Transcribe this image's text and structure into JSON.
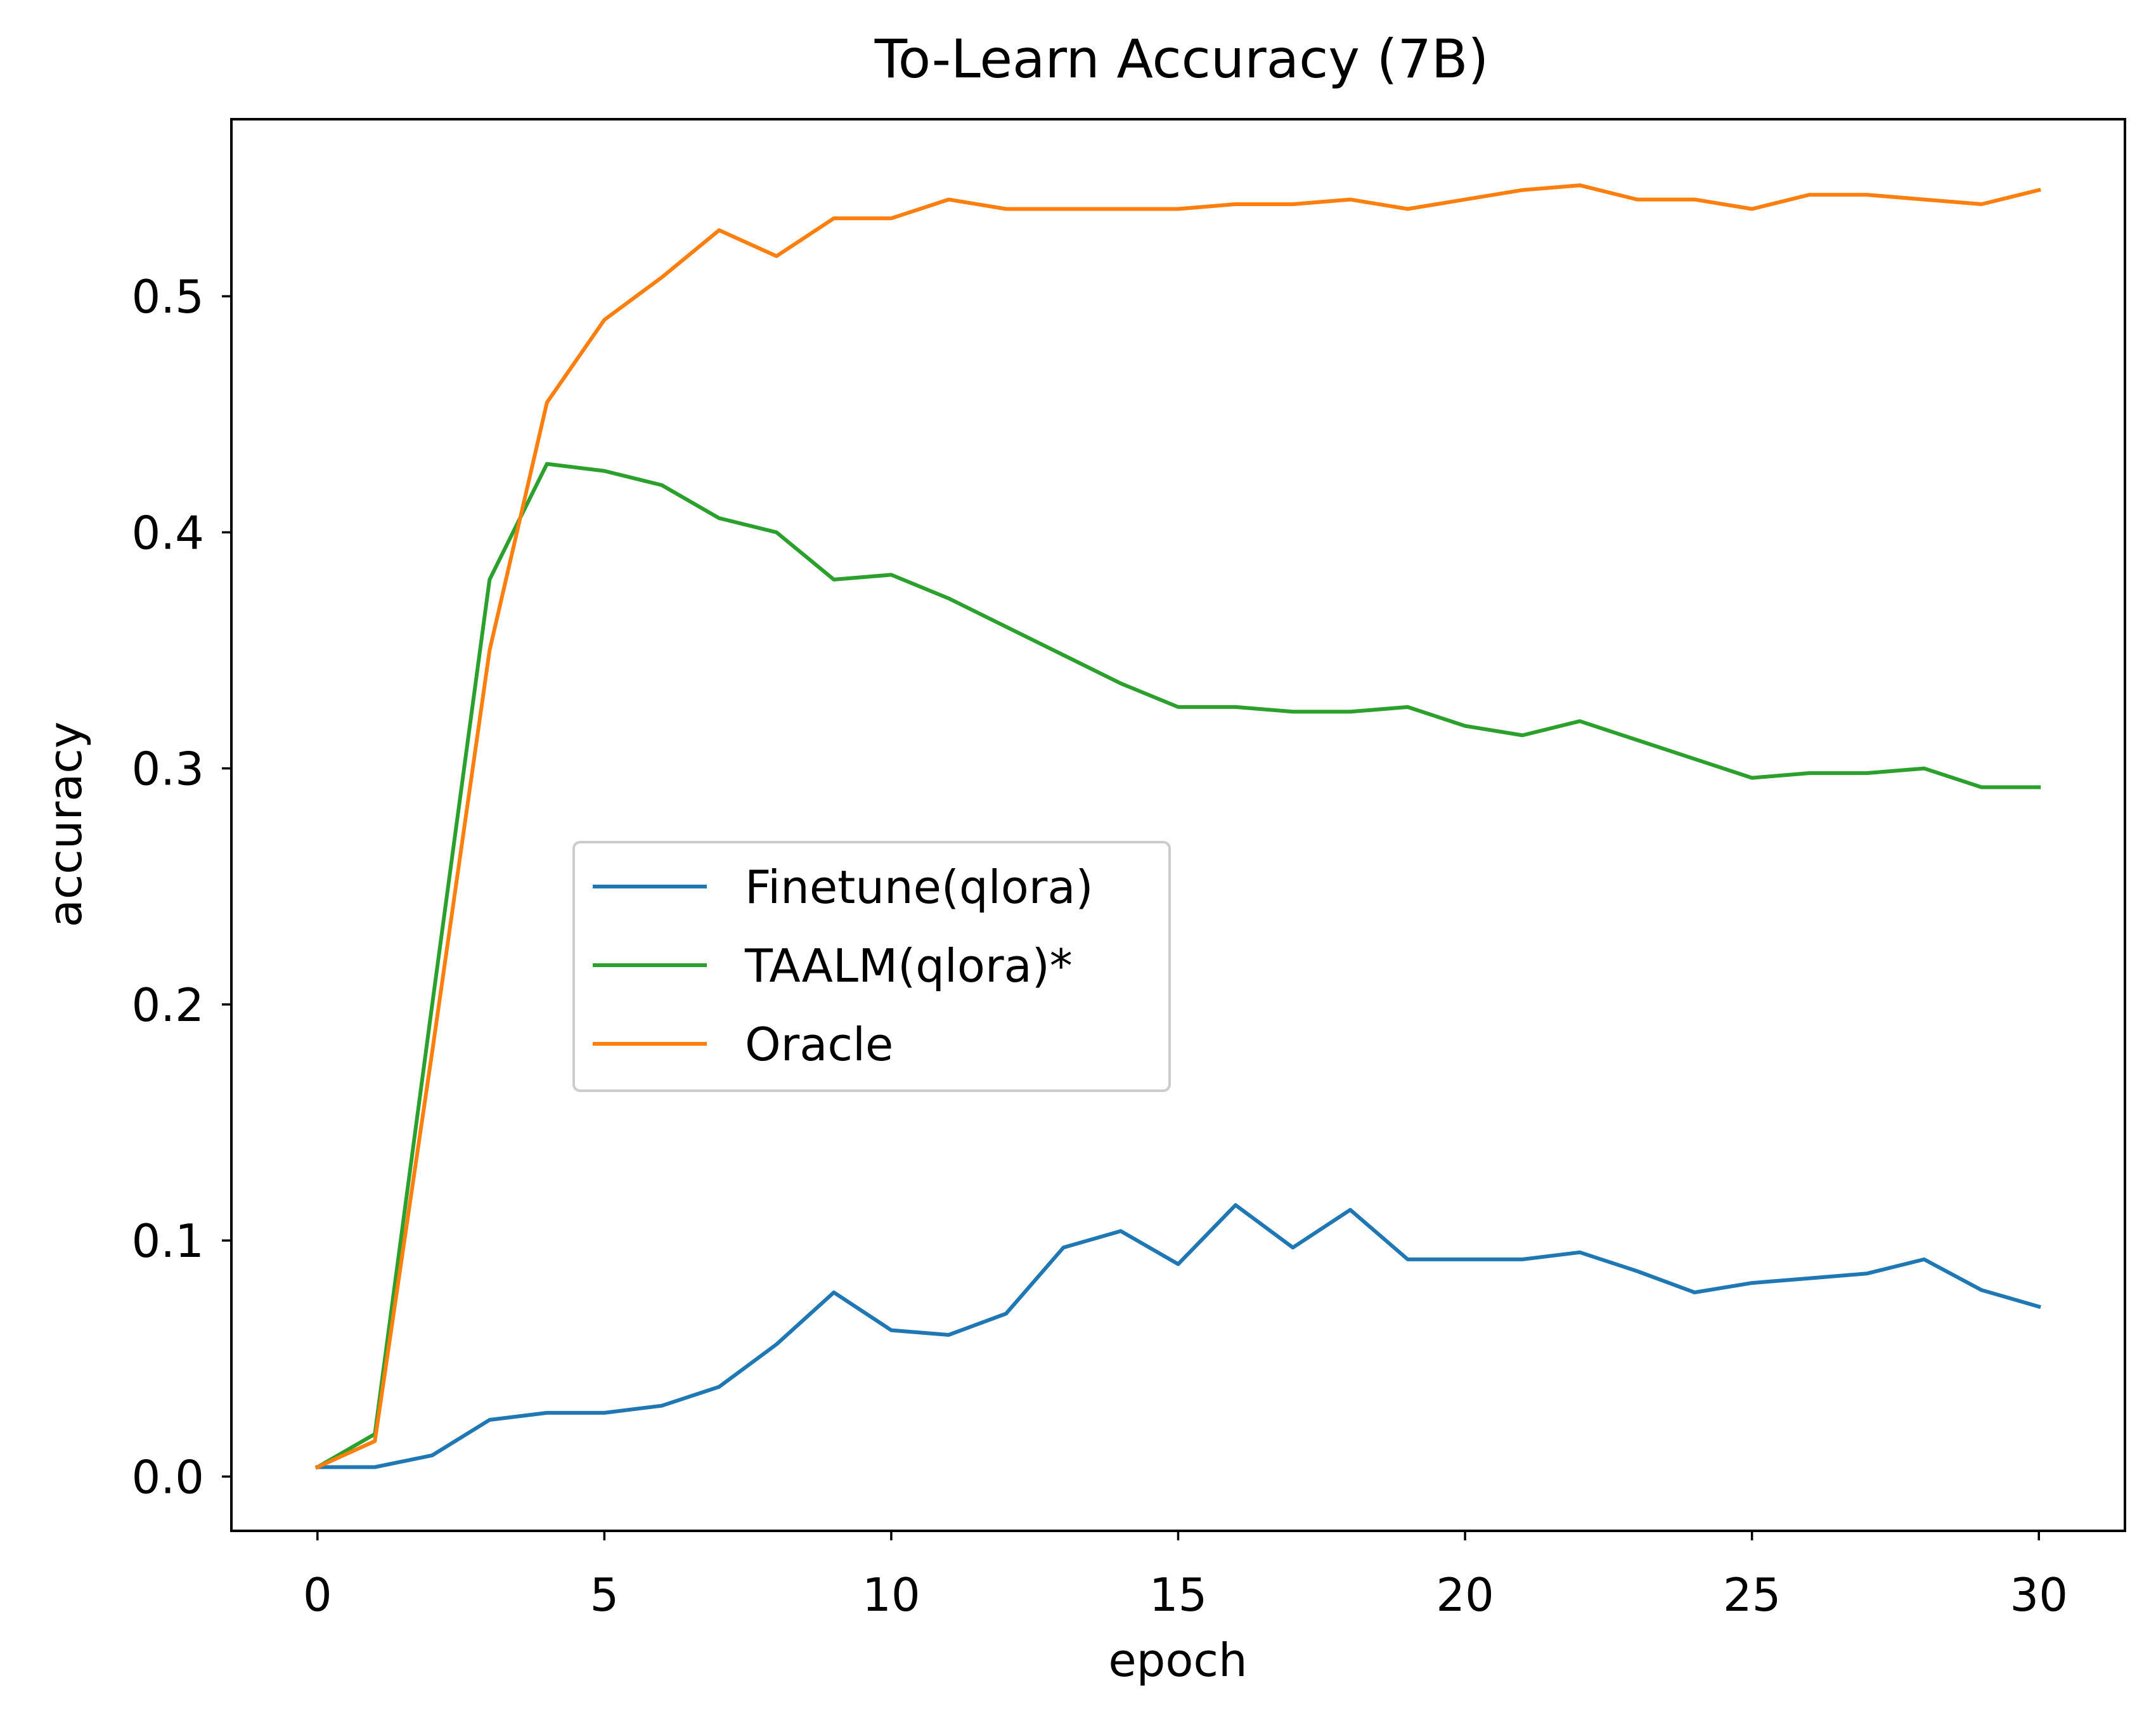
{
  "chart_data": {
    "type": "line",
    "title": "To-Learn Accuracy (7B)",
    "xlabel": "epoch",
    "ylabel": "accuracy",
    "xlim": [
      -1.5,
      31.5
    ],
    "ylim": [
      -0.023,
      0.575
    ],
    "xticks": [
      0,
      5,
      10,
      15,
      20,
      25,
      30
    ],
    "xtick_labels": [
      "0",
      "5",
      "10",
      "15",
      "20",
      "25",
      "30"
    ],
    "yticks": [
      0.0,
      0.1,
      0.2,
      0.3,
      0.4,
      0.5
    ],
    "ytick_labels": [
      "0.0",
      "0.1",
      "0.2",
      "0.3",
      "0.4",
      "0.5"
    ],
    "grid": false,
    "legend_position": "center",
    "x": [
      0,
      1,
      2,
      3,
      4,
      5,
      6,
      7,
      8,
      9,
      10,
      11,
      12,
      13,
      14,
      15,
      16,
      17,
      18,
      19,
      20,
      21,
      22,
      23,
      24,
      25,
      26,
      27,
      28,
      29,
      30
    ],
    "series": [
      {
        "name": "Finetune(qlora)",
        "color": "#1f77b4",
        "values": [
          0.004,
          0.004,
          0.009,
          0.024,
          0.027,
          0.027,
          0.03,
          0.038,
          0.056,
          0.078,
          0.062,
          0.06,
          0.069,
          0.097,
          0.104,
          0.09,
          0.115,
          0.097,
          0.113,
          0.092,
          0.092,
          0.092,
          0.095,
          0.087,
          0.078,
          0.082,
          0.084,
          0.086,
          0.092,
          0.079,
          0.072
        ]
      },
      {
        "name": "TAALM(qlora)*",
        "color": "#2ca02c",
        "values": [
          0.004,
          0.018,
          0.2,
          0.38,
          0.429,
          0.426,
          0.42,
          0.406,
          0.4,
          0.38,
          0.382,
          0.372,
          0.36,
          0.348,
          0.336,
          0.326,
          0.326,
          0.324,
          0.324,
          0.326,
          0.318,
          0.314,
          0.32,
          0.312,
          0.304,
          0.296,
          0.298,
          0.298,
          0.3,
          0.292,
          0.292
        ]
      },
      {
        "name": "Oracle",
        "color": "#ff7f0e",
        "values": [
          0.004,
          0.015,
          0.18,
          0.35,
          0.455,
          0.49,
          0.508,
          0.528,
          0.517,
          0.533,
          0.533,
          0.541,
          0.537,
          0.537,
          0.537,
          0.537,
          0.539,
          0.539,
          0.541,
          0.537,
          0.541,
          0.545,
          0.547,
          0.541,
          0.541,
          0.537,
          0.543,
          0.543,
          0.541,
          0.539,
          0.545
        ]
      }
    ]
  }
}
